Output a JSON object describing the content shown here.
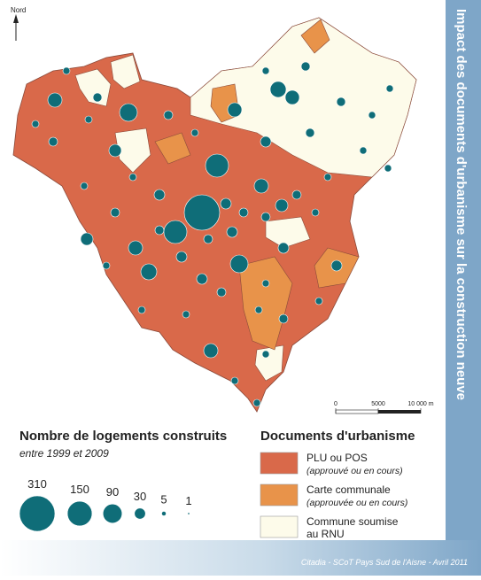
{
  "north": "Nord",
  "side_title": "Impact des documents d'urbanisme sur la construction neuve",
  "scale_bar": {
    "ticks": [
      0,
      5000,
      {
        "value": 10000,
        "label": "10 000 m"
      }
    ]
  },
  "size_legend": {
    "title": "Nombre de logements construits",
    "subtitle": "entre 1999 et  2009",
    "values": [
      310,
      150,
      90,
      30,
      5,
      1
    ]
  },
  "doc_legend": {
    "title": "Documents d'urbanisme",
    "items": [
      {
        "label": "PLU ou POS",
        "note": "(approuvé ou en cours)",
        "color": "#d9694a"
      },
      {
        "label": "Carte communale",
        "note": "(approuvée ou en cours)",
        "color": "#e8934a"
      },
      {
        "label": "Commune soumise",
        "note": "au RNU",
        "color": "#fdfbea"
      }
    ]
  },
  "credit": "Citadia - SCoT Pays Sud de l'Aisne - Avril 2011"
}
